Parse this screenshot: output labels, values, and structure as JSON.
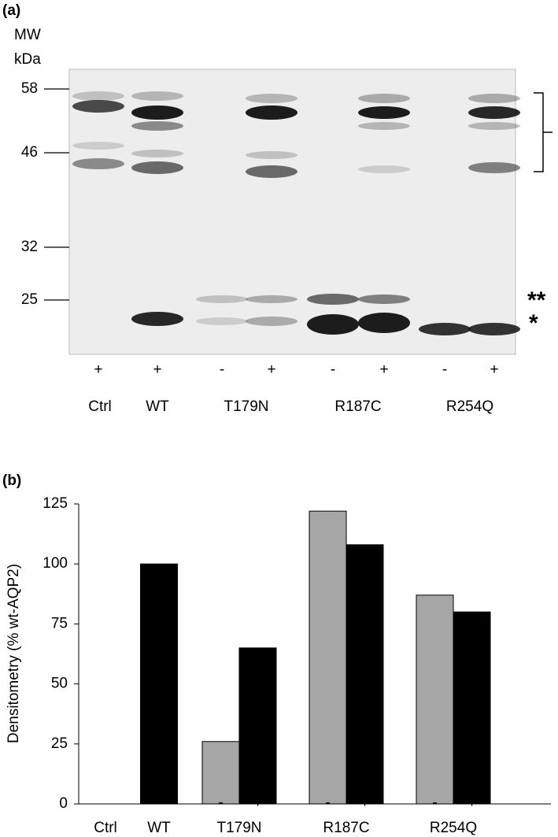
{
  "panel_a": {
    "label": "(a)",
    "mw_title": "MW",
    "mw_unit": "kDa",
    "mw_markers": [
      58,
      46,
      32,
      25
    ],
    "lane_signs": [
      "+",
      "+",
      "-",
      "+",
      "-",
      "+",
      "-",
      "+"
    ],
    "lanes": [
      "Ctrl",
      "WT",
      "T179N",
      "R187C",
      "R254Q"
    ],
    "band_marks": [
      "**",
      "*"
    ]
  },
  "chart_data": {
    "type": "bar",
    "panel_label": "(b)",
    "ylabel": "Densitometry (% wt-AQP2)",
    "categories": [
      "Ctrl",
      "WT",
      "T179N",
      "R187C",
      "R254Q"
    ],
    "series": [
      {
        "name": "-",
        "color": "#a6a6a6",
        "values": [
          null,
          null,
          26,
          122,
          87
        ]
      },
      {
        "name": "+",
        "color": "#000000",
        "values": [
          0,
          100,
          65,
          108,
          80
        ]
      }
    ],
    "ylim": [
      0,
      125
    ],
    "yticks": [
      0,
      25,
      50,
      75,
      100,
      125
    ]
  }
}
